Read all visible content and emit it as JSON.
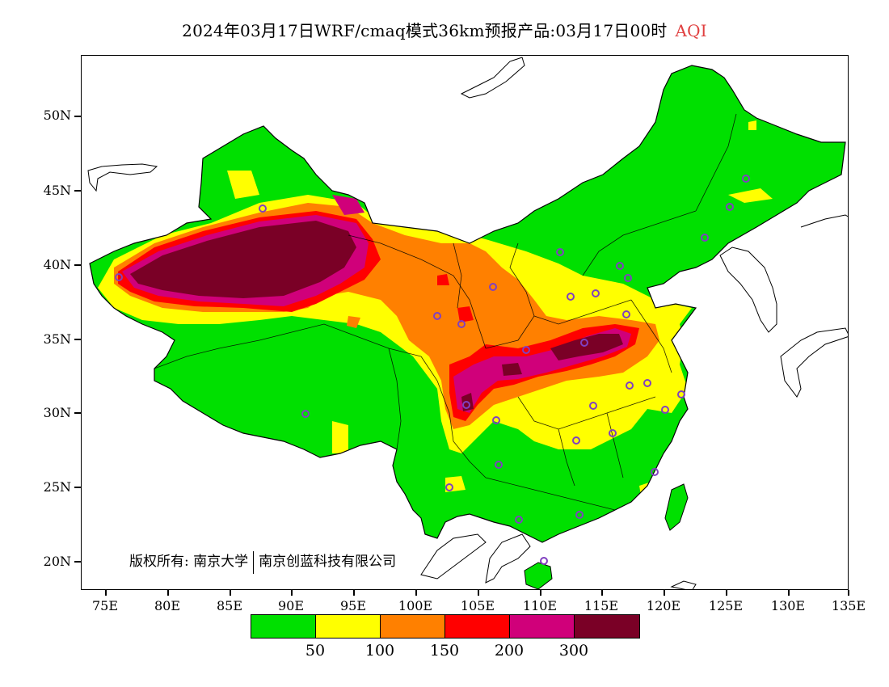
{
  "title": {
    "main": "2024年03月17日WRF/cmaq模式36km预报产品:03月17日00时",
    "variable": "AQI"
  },
  "axes": {
    "lat_labels": [
      "50N",
      "45N",
      "40N",
      "35N",
      "30N",
      "25N",
      "20N"
    ],
    "lon_labels": [
      "75E",
      "80E",
      "85E",
      "90E",
      "95E",
      "100E",
      "105E",
      "110E",
      "115E",
      "120E",
      "125E",
      "130E",
      "135E"
    ]
  },
  "copyright": {
    "prefix": "版权所有:",
    "org1": "南京大学",
    "org2": "南京创蓝科技有限公司"
  },
  "legend": {
    "colors": [
      "#00e000",
      "#ffff00",
      "#ff8000",
      "#ff0000",
      "#d0007a",
      "#7a0026"
    ],
    "labels": [
      "50",
      "100",
      "150",
      "200",
      "300"
    ]
  },
  "map_colors": {
    "outline": "#000000",
    "station": "#8040c0"
  }
}
